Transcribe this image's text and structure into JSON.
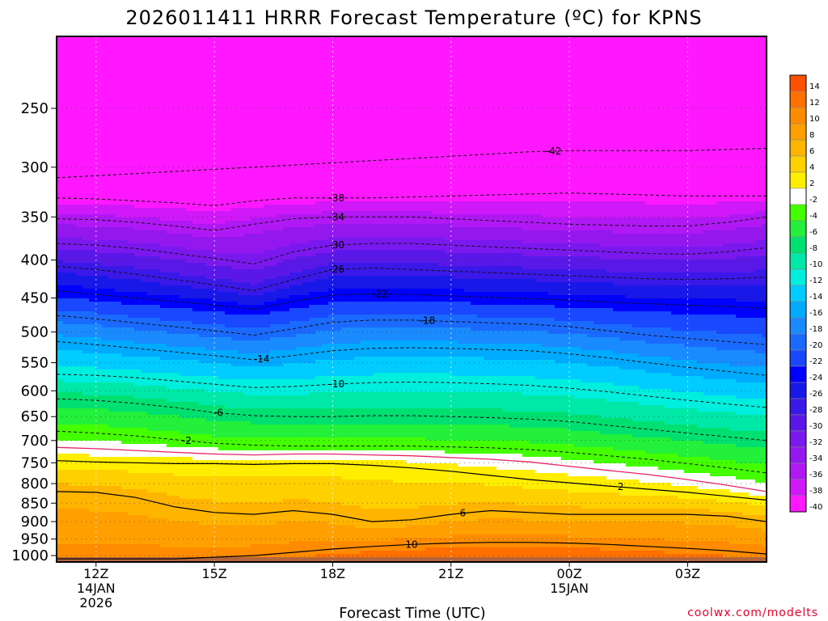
{
  "chart_data": {
    "type": "contour",
    "title": "2026011411 HRRR Forecast Temperature (ºC) for KPNS",
    "xlabel": "Forecast Time (UTC)",
    "ylabel": "",
    "credit": "coolwx.com/modelts",
    "x_ticks": [
      {
        "hour": 1,
        "lines": [
          "12Z",
          "14JAN",
          "2026"
        ]
      },
      {
        "hour": 4,
        "lines": [
          "15Z"
        ]
      },
      {
        "hour": 7,
        "lines": [
          "18Z"
        ]
      },
      {
        "hour": 10,
        "lines": [
          "21Z"
        ]
      },
      {
        "hour": 13,
        "lines": [
          "00Z",
          "15JAN"
        ]
      },
      {
        "hour": 16,
        "lines": [
          "03Z"
        ]
      }
    ],
    "xlim": [
      0,
      18
    ],
    "y_ticks": [
      250,
      300,
      350,
      400,
      450,
      500,
      550,
      600,
      650,
      700,
      750,
      800,
      850,
      900,
      950,
      1000
    ],
    "ylim_hpa": [
      200,
      1020
    ],
    "ground_level_hpa": 1005,
    "hours": [
      0,
      1,
      2,
      3,
      4,
      5,
      6,
      7,
      8,
      9,
      10,
      11,
      12,
      13,
      14,
      15,
      16,
      17,
      18
    ],
    "temperature_profile_12Z": [
      {
        "p": 200,
        "t": -50
      },
      {
        "p": 250,
        "t": -46
      },
      {
        "p": 300,
        "t": -42
      },
      {
        "p": 330,
        "t": -38
      },
      {
        "p": 350,
        "t": -34
      },
      {
        "p": 380,
        "t": -30
      },
      {
        "p": 410,
        "t": -26
      },
      {
        "p": 440,
        "t": -22
      },
      {
        "p": 475,
        "t": -18
      },
      {
        "p": 515,
        "t": -14
      },
      {
        "p": 570,
        "t": -10
      },
      {
        "p": 615,
        "t": -6
      },
      {
        "p": 680,
        "t": -2
      },
      {
        "p": 715,
        "t": 0
      },
      {
        "p": 745,
        "t": 2
      },
      {
        "p": 820,
        "t": 6
      },
      {
        "p": 1000,
        "t": 10
      }
    ],
    "contours": [
      {
        "value": -42,
        "style": "dashed",
        "label": "-42",
        "p": [
          310,
          308,
          306,
          304,
          302,
          300,
          298,
          296,
          294,
          292,
          290,
          288,
          286,
          285,
          285,
          285,
          285,
          284,
          283
        ]
      },
      {
        "value": -38,
        "style": "dashed",
        "label": "-38",
        "p": [
          330,
          331,
          333,
          335,
          338,
          333,
          330,
          330,
          330,
          329,
          328,
          327,
          326,
          325,
          326,
          327,
          328,
          328,
          328
        ]
      },
      {
        "value": -34,
        "style": "dashed",
        "label": "-34",
        "p": [
          352,
          353,
          356,
          360,
          365,
          358,
          352,
          350,
          350,
          350,
          352,
          354,
          356,
          358,
          359,
          360,
          360,
          356,
          350
        ]
      },
      {
        "value": -30,
        "style": "dashed",
        "label": "-30",
        "p": [
          380,
          382,
          386,
          392,
          398,
          405,
          390,
          382,
          380,
          380,
          382,
          384,
          386,
          388,
          390,
          392,
          393,
          390,
          385
        ]
      },
      {
        "value": -26,
        "style": "dashed",
        "label": "-26",
        "p": [
          408,
          412,
          418,
          425,
          432,
          440,
          425,
          412,
          410,
          412,
          414,
          416,
          418,
          420,
          422,
          424,
          425,
          424,
          422
        ]
      },
      {
        "value": -22,
        "style": "dashed",
        "label": "-22",
        "p": [
          440,
          445,
          450,
          455,
          460,
          466,
          455,
          446,
          444,
          445,
          447,
          449,
          451,
          453,
          456,
          458,
          460,
          462,
          465
        ]
      },
      {
        "value": -18,
        "style": "dashed",
        "label": "-18",
        "p": [
          475,
          480,
          486,
          492,
          498,
          505,
          495,
          485,
          482,
          482,
          484,
          486,
          488,
          492,
          498,
          505,
          510,
          515,
          520
        ]
      },
      {
        "value": -14,
        "style": "dashed",
        "label": "-14",
        "p": [
          515,
          520,
          526,
          532,
          538,
          545,
          538,
          530,
          526,
          525,
          526,
          528,
          530,
          535,
          542,
          550,
          558,
          565,
          572
        ]
      },
      {
        "value": -10,
        "style": "dashed",
        "label": "-10",
        "p": [
          570,
          572,
          576,
          582,
          588,
          594,
          592,
          588,
          585,
          584,
          585,
          587,
          590,
          595,
          602,
          610,
          618,
          625,
          632
        ]
      },
      {
        "value": -6,
        "style": "dashed",
        "label": "-6",
        "p": [
          615,
          618,
          624,
          632,
          642,
          648,
          650,
          650,
          648,
          648,
          650,
          652,
          655,
          660,
          668,
          676,
          684,
          692,
          700
        ]
      },
      {
        "value": -2,
        "style": "dashed",
        "label": "-2",
        "p": [
          680,
          684,
          690,
          698,
          706,
          710,
          712,
          712,
          712,
          712,
          714,
          716,
          720,
          726,
          734,
          742,
          752,
          762,
          774
        ]
      },
      {
        "value": 0,
        "style": "magenta",
        "label": "",
        "p": [
          715,
          718,
          722,
          726,
          730,
          732,
          730,
          730,
          732,
          734,
          738,
          742,
          748,
          758,
          768,
          778,
          790,
          804,
          820
        ]
      },
      {
        "value": 2,
        "style": "solid",
        "label": "2",
        "p": [
          745,
          748,
          750,
          752,
          752,
          754,
          752,
          752,
          756,
          762,
          770,
          780,
          790,
          798,
          806,
          814,
          822,
          832,
          842
        ]
      },
      {
        "value": 6,
        "style": "solid",
        "label": "6",
        "p": [
          820,
          822,
          835,
          860,
          875,
          880,
          870,
          880,
          900,
          895,
          880,
          870,
          875,
          880,
          880,
          880,
          880,
          885,
          900
        ]
      },
      {
        "value": 10,
        "style": "solid",
        "label": "10",
        "p": [
          1010,
          1010,
          1010,
          1010,
          1005,
          1000,
          990,
          980,
          972,
          966,
          962,
          960,
          960,
          962,
          966,
          972,
          978,
          985,
          995
        ]
      }
    ],
    "colorbar": {
      "labels": [
        "14",
        "12",
        "10",
        "8",
        "6",
        "4",
        "2",
        "-2",
        "-4",
        "-6",
        "-8",
        "-10",
        "-12",
        "-14",
        "-16",
        "-18",
        "-20",
        "-22",
        "-24",
        "-26",
        "-28",
        "-30",
        "-32",
        "-34",
        "-36",
        "-38",
        "-40"
      ],
      "colors": [
        "#ff5000",
        "#ff7000",
        "#ff8c00",
        "#ffa000",
        "#ffb400",
        "#ffd000",
        "#ffee00",
        "#ffffff",
        "#44ff00",
        "#22f03a",
        "#00e070",
        "#00e8a8",
        "#00eede",
        "#00ccff",
        "#00aaff",
        "#1a8aff",
        "#1a6aff",
        "#1a48ff",
        "#0000ff",
        "#1818e8",
        "#3a18e8",
        "#5a18e8",
        "#7a18ee",
        "#9418ee",
        "#b018f4",
        "#d018f8",
        "#ff18ff"
      ]
    }
  }
}
